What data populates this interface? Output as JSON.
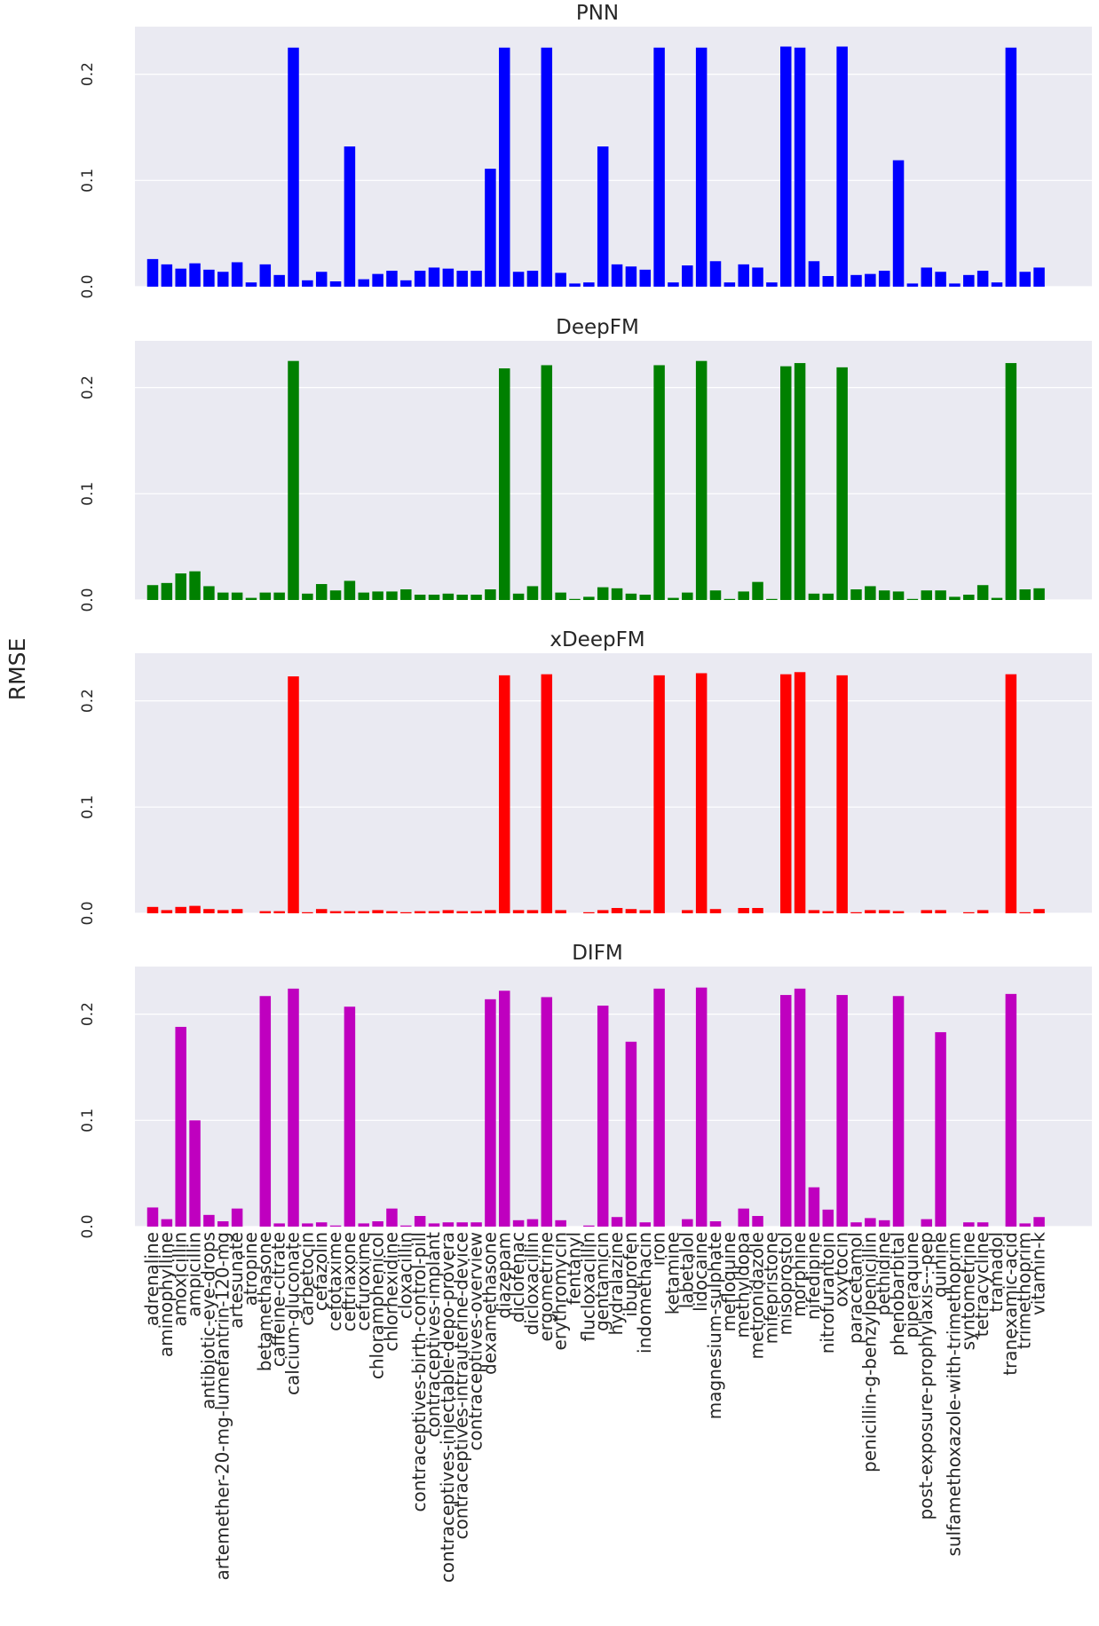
{
  "chart_data": {
    "type": "bar",
    "ylabel": "RMSE",
    "xlabel": "",
    "ylim": [
      0,
      0.235
    ],
    "yticks": [
      "0.0",
      "0.1",
      "0.2"
    ],
    "categories": [
      "adrenaline",
      "aminophylline",
      "amoxicillin",
      "ampicillin",
      "antibiotic-eye-drops",
      "artemether-20-mg-lumefantrin-120-mg",
      "artesunate",
      "atropine",
      "betamethasone",
      "caffeine-citrate",
      "calcium-gluconate",
      "carbetocin",
      "cefazolin",
      "cefotaxime",
      "ceftriaxone",
      "cefuroxime",
      "chloramphenicol",
      "chlorhexidine",
      "cloxacillin",
      "contraceptives-birth-control-pill",
      "contraceptives-implant",
      "contraceptives-injectable-depo-provera",
      "contraceptives-intrauterine-device",
      "contraceptives-overview",
      "dexamethasone",
      "diazepam",
      "diclofenac",
      "dicloxacillin",
      "ergometrine",
      "erythromycin",
      "fentanyl",
      "flucloxacillin",
      "gentamicin",
      "hydralazine",
      "ibuprofen",
      "indomethacin",
      "iron",
      "ketamine",
      "labetalol",
      "lidocaine",
      "magnesium-sulphate",
      "mefloquine",
      "methyldopa",
      "metronidazole",
      "mifepristone",
      "misoprostol",
      "morphine",
      "nifedipine",
      "nitrofurantoin",
      "oxytocin",
      "paracetamol",
      "penicillin-g-benzylpenicillin",
      "pethidine",
      "phenobarbital",
      "piperaquine",
      "post-exposure-prophylaxis---pep",
      "quinine",
      "sulfamethoxazole-with-trimethoprim",
      "syntometrine",
      "tetracycline",
      "tramadol",
      "tranexamic-acid",
      "trimethoprim",
      "vitamin-k"
    ],
    "series": [
      {
        "name": "PNN",
        "color": "#0000ff",
        "values": [
          0.026,
          0.021,
          0.017,
          0.022,
          0.016,
          0.014,
          0.023,
          0.004,
          0.021,
          0.011,
          0.225,
          0.006,
          0.014,
          0.005,
          0.132,
          0.007,
          0.012,
          0.015,
          0.006,
          0.015,
          0.018,
          0.017,
          0.015,
          0.015,
          0.111,
          0.225,
          0.014,
          0.015,
          0.225,
          0.013,
          0.003,
          0.004,
          0.132,
          0.021,
          0.019,
          0.016,
          0.225,
          0.004,
          0.02,
          0.225,
          0.024,
          0.004,
          0.021,
          0.018,
          0.004,
          0.226,
          0.225,
          0.024,
          0.01,
          0.226,
          0.011,
          0.012,
          0.015,
          0.119,
          0.003,
          0.018,
          0.014,
          0.003,
          0.011,
          0.015,
          0.004,
          0.225,
          0.014,
          0.018
        ]
      },
      {
        "name": "DeepFM",
        "color": "#008000",
        "values": [
          0.014,
          0.016,
          0.025,
          0.027,
          0.013,
          0.007,
          0.007,
          0.002,
          0.007,
          0.007,
          0.225,
          0.006,
          0.015,
          0.009,
          0.018,
          0.007,
          0.008,
          0.008,
          0.01,
          0.005,
          0.005,
          0.006,
          0.005,
          0.005,
          0.01,
          0.218,
          0.006,
          0.013,
          0.221,
          0.007,
          0.001,
          0.003,
          0.012,
          0.011,
          0.006,
          0.005,
          0.221,
          0.002,
          0.007,
          0.225,
          0.009,
          0.001,
          0.008,
          0.017,
          0.001,
          0.22,
          0.223,
          0.006,
          0.006,
          0.219,
          0.01,
          0.013,
          0.009,
          0.008,
          0.001,
          0.009,
          0.009,
          0.003,
          0.005,
          0.014,
          0.002,
          0.223,
          0.01,
          0.011
        ]
      },
      {
        "name": "xDeepFM",
        "color": "#ff0000",
        "values": [
          0.006,
          0.003,
          0.006,
          0.007,
          0.004,
          0.003,
          0.004,
          0.0,
          0.002,
          0.002,
          0.223,
          0.001,
          0.004,
          0.002,
          0.002,
          0.002,
          0.003,
          0.002,
          0.001,
          0.002,
          0.002,
          0.003,
          0.002,
          0.002,
          0.003,
          0.224,
          0.003,
          0.003,
          0.225,
          0.003,
          0.0,
          0.001,
          0.003,
          0.005,
          0.004,
          0.003,
          0.224,
          0.0,
          0.003,
          0.226,
          0.004,
          0.0,
          0.005,
          0.005,
          0.0,
          0.225,
          0.227,
          0.003,
          0.002,
          0.224,
          0.001,
          0.003,
          0.003,
          0.002,
          0.0,
          0.003,
          0.003,
          0.0,
          0.001,
          0.003,
          0.0,
          0.225,
          0.001,
          0.004
        ]
      },
      {
        "name": "DIFM",
        "color": "#bf00bf",
        "values": [
          0.018,
          0.007,
          0.188,
          0.1,
          0.011,
          0.005,
          0.017,
          0.0,
          0.217,
          0.003,
          0.224,
          0.003,
          0.004,
          0.001,
          0.207,
          0.003,
          0.005,
          0.017,
          0.001,
          0.01,
          0.003,
          0.004,
          0.004,
          0.004,
          0.214,
          0.222,
          0.006,
          0.007,
          0.216,
          0.006,
          0.0,
          0.001,
          0.208,
          0.009,
          0.174,
          0.004,
          0.224,
          0.0,
          0.007,
          0.225,
          0.005,
          0.0,
          0.017,
          0.01,
          0.0,
          0.218,
          0.224,
          0.037,
          0.016,
          0.218,
          0.004,
          0.008,
          0.006,
          0.217,
          0.0,
          0.007,
          0.183,
          0.0,
          0.004,
          0.004,
          0.0,
          0.219,
          0.003,
          0.009
        ]
      }
    ]
  }
}
